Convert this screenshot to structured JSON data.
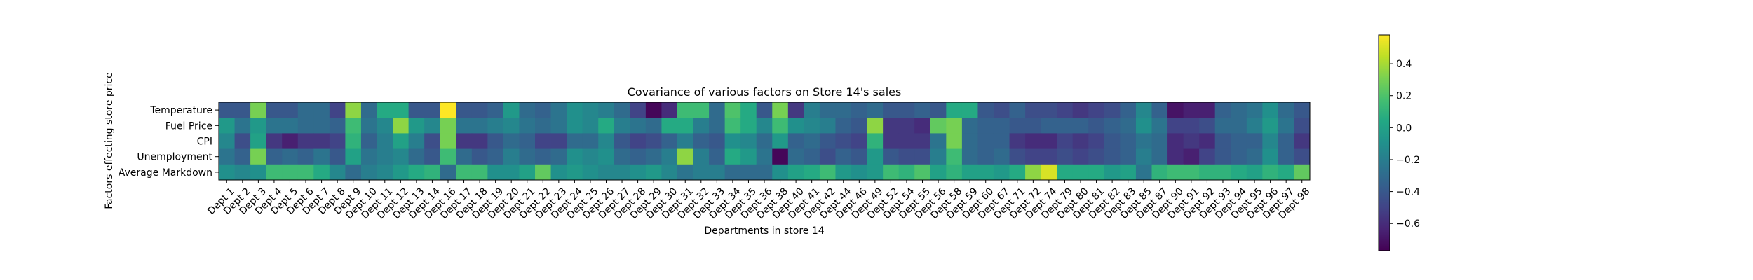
{
  "chart_data": {
    "type": "heatmap",
    "title": "Covariance of various factors on Store 14's sales",
    "xlabel": "Departments in store 14",
    "ylabel": "Factors effecting store price",
    "rows": [
      "Temperature",
      "Fuel Price",
      "CPI",
      "Unemployment",
      "Average Markdown"
    ],
    "columns": [
      "Dept 1",
      "Dept 2",
      "Dept 3",
      "Dept 4",
      "Dept 5",
      "Dept 6",
      "Dept 7",
      "Dept 8",
      "Dept 9",
      "Dept 10",
      "Dept 11",
      "Dept 12",
      "Dept 13",
      "Dept 14",
      "Dept 16",
      "Dept 17",
      "Dept 18",
      "Dept 19",
      "Dept 20",
      "Dept 21",
      "Dept 22",
      "Dept 23",
      "Dept 24",
      "Dept 25",
      "Dept 26",
      "Dept 27",
      "Dept 28",
      "Dept 29",
      "Dept 30",
      "Dept 31",
      "Dept 32",
      "Dept 33",
      "Dept 34",
      "Dept 35",
      "Dept 36",
      "Dept 38",
      "Dept 40",
      "Dept 41",
      "Dept 42",
      "Dept 44",
      "Dept 46",
      "Dept 49",
      "Dept 52",
      "Dept 54",
      "Dept 55",
      "Dept 56",
      "Dept 58",
      "Dept 59",
      "Dept 60",
      "Dept 67",
      "Dept 71",
      "Dept 72",
      "Dept 74",
      "Dept 79",
      "Dept 80",
      "Dept 81",
      "Dept 82",
      "Dept 83",
      "Dept 85",
      "Dept 87",
      "Dept 90",
      "Dept 91",
      "Dept 92",
      "Dept 93",
      "Dept 94",
      "Dept 95",
      "Dept 96",
      "Dept 97",
      "Dept 98"
    ],
    "values": [
      [
        -0.4,
        -0.4,
        0.3,
        -0.4,
        -0.4,
        -0.3,
        -0.3,
        -0.5,
        0.35,
        -0.3,
        0.05,
        0.05,
        -0.4,
        -0.4,
        0.58,
        -0.4,
        -0.4,
        -0.35,
        -0.05,
        -0.3,
        -0.35,
        -0.25,
        -0.1,
        -0.15,
        -0.2,
        -0.3,
        -0.5,
        -0.75,
        -0.6,
        0.15,
        0.15,
        -0.3,
        0.2,
        0.05,
        -0.4,
        0.3,
        -0.55,
        -0.2,
        -0.3,
        -0.3,
        -0.35,
        -0.3,
        -0.4,
        -0.4,
        -0.35,
        -0.4,
        0.05,
        0.05,
        -0.4,
        -0.45,
        -0.35,
        -0.45,
        -0.45,
        -0.5,
        -0.55,
        -0.5,
        -0.45,
        -0.35,
        -0.15,
        -0.35,
        -0.7,
        -0.65,
        -0.65,
        -0.35,
        -0.3,
        -0.25,
        -0.1,
        -0.3,
        -0.4
      ],
      [
        -0.05,
        -0.25,
        -0.05,
        -0.25,
        -0.25,
        -0.3,
        -0.3,
        -0.35,
        0.15,
        -0.25,
        -0.15,
        0.35,
        -0.05,
        -0.15,
        0.3,
        -0.25,
        -0.25,
        -0.2,
        -0.15,
        -0.25,
        -0.3,
        -0.25,
        -0.1,
        -0.15,
        0.05,
        -0.2,
        -0.25,
        -0.3,
        0.05,
        0.05,
        -0.2,
        -0.3,
        0.15,
        0.05,
        -0.15,
        0.15,
        -0.1,
        -0.15,
        -0.2,
        -0.35,
        -0.4,
        0.35,
        -0.55,
        -0.55,
        -0.6,
        0.25,
        0.3,
        -0.3,
        -0.35,
        -0.35,
        -0.4,
        -0.4,
        -0.35,
        -0.35,
        -0.35,
        -0.4,
        -0.35,
        -0.3,
        -0.1,
        -0.25,
        -0.5,
        -0.5,
        -0.45,
        -0.3,
        -0.3,
        -0.2,
        -0.05,
        -0.25,
        -0.45
      ],
      [
        -0.15,
        -0.45,
        0.0,
        -0.55,
        -0.65,
        -0.55,
        -0.55,
        -0.5,
        0.1,
        -0.35,
        -0.2,
        0.0,
        -0.2,
        -0.45,
        0.3,
        -0.55,
        -0.55,
        -0.4,
        -0.3,
        -0.35,
        -0.5,
        -0.5,
        -0.3,
        -0.3,
        -0.15,
        -0.4,
        -0.5,
        -0.45,
        -0.35,
        -0.2,
        -0.35,
        -0.4,
        -0.1,
        -0.15,
        -0.3,
        -0.05,
        -0.35,
        -0.3,
        -0.4,
        -0.45,
        -0.5,
        0.1,
        -0.55,
        -0.55,
        -0.55,
        -0.25,
        0.3,
        -0.3,
        -0.35,
        -0.35,
        -0.55,
        -0.6,
        -0.6,
        -0.5,
        -0.55,
        -0.5,
        -0.4,
        -0.35,
        -0.25,
        -0.3,
        -0.6,
        -0.55,
        -0.6,
        -0.4,
        -0.35,
        -0.35,
        -0.15,
        -0.35,
        -0.55
      ],
      [
        -0.25,
        -0.35,
        0.3,
        -0.35,
        -0.3,
        -0.35,
        -0.25,
        -0.4,
        0.0,
        -0.25,
        -0.2,
        -0.15,
        -0.3,
        -0.4,
        0.15,
        -0.3,
        -0.4,
        -0.35,
        -0.2,
        -0.3,
        -0.35,
        -0.3,
        -0.1,
        -0.15,
        -0.1,
        -0.3,
        -0.35,
        -0.3,
        -0.2,
        0.35,
        -0.2,
        -0.35,
        0.05,
        -0.05,
        -0.25,
        -0.75,
        -0.3,
        -0.35,
        -0.45,
        -0.35,
        -0.4,
        -0.05,
        -0.4,
        -0.45,
        -0.45,
        -0.2,
        0.15,
        -0.3,
        -0.35,
        -0.3,
        -0.45,
        -0.5,
        -0.5,
        -0.45,
        -0.5,
        -0.45,
        -0.4,
        -0.35,
        -0.2,
        -0.3,
        -0.6,
        -0.65,
        -0.5,
        -0.4,
        -0.35,
        -0.3,
        -0.1,
        -0.35,
        -0.45
      ],
      [
        -0.1,
        -0.15,
        -0.1,
        0.15,
        0.15,
        0.15,
        0.05,
        -0.15,
        -0.3,
        -0.2,
        -0.15,
        -0.05,
        0.05,
        0.1,
        -0.3,
        0.15,
        0.15,
        -0.1,
        -0.1,
        0.0,
        0.25,
        -0.1,
        -0.05,
        -0.1,
        -0.15,
        -0.15,
        -0.1,
        -0.05,
        -0.15,
        -0.25,
        -0.2,
        -0.2,
        -0.3,
        -0.3,
        -0.3,
        -0.1,
        0.0,
        0.05,
        0.15,
        -0.05,
        -0.1,
        -0.05,
        0.15,
        0.1,
        0.2,
        0.0,
        0.1,
        0.0,
        0.0,
        -0.05,
        0.05,
        0.35,
        0.5,
        0.05,
        0.05,
        0.05,
        -0.05,
        0.0,
        -0.25,
        0.1,
        0.15,
        0.15,
        0.1,
        0.1,
        0.05,
        0.0,
        0.1,
        0.05,
        0.25
      ]
    ],
    "vmin": -0.77,
    "vmax": 0.58,
    "colormap": "viridis",
    "colorbar_ticks": [
      0.4,
      0.2,
      0.0,
      -0.2,
      -0.4,
      -0.6
    ],
    "colorbar_tick_labels": [
      "0.4",
      "0.2",
      "0.0",
      "−0.2",
      "−0.4",
      "−0.6"
    ],
    "grid": false
  }
}
